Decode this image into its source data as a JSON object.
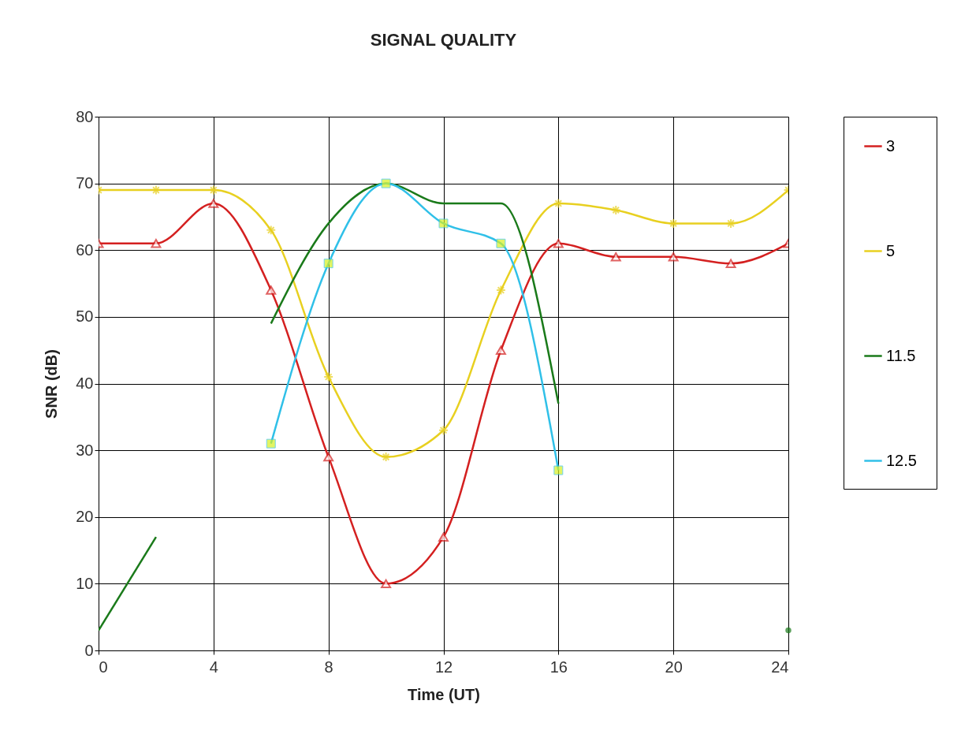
{
  "chart_data": {
    "type": "line",
    "title": "SIGNAL QUALITY",
    "xlabel": "Time (UT)",
    "ylabel": "SNR (dB)",
    "x": [
      0,
      2,
      4,
      6,
      8,
      10,
      12,
      14,
      16,
      18,
      20,
      22,
      24
    ],
    "series": [
      {
        "name": "3",
        "color": "#d42020",
        "marker": "triangle",
        "values": [
          61,
          61,
          67,
          54,
          29,
          10,
          17,
          45,
          61,
          59,
          59,
          58,
          61
        ]
      },
      {
        "name": "5",
        "color": "#e8d020",
        "marker": "cross",
        "values": [
          69,
          69,
          69,
          63,
          41,
          29,
          33,
          54,
          67,
          66,
          64,
          64,
          69
        ]
      },
      {
        "name": "11.5",
        "color": "#1a7a1a",
        "marker": "none",
        "values": [
          3,
          17,
          null,
          49,
          64,
          70,
          67,
          67,
          37,
          null,
          null,
          null,
          3
        ]
      },
      {
        "name": "12.5",
        "color": "#30c0e8",
        "marker": "square",
        "values": [
          null,
          null,
          null,
          31,
          58,
          70,
          64,
          61,
          27,
          null,
          null,
          null,
          null
        ]
      }
    ],
    "xlim": [
      0,
      24
    ],
    "xticks": [
      0,
      4,
      8,
      12,
      16,
      20,
      24
    ],
    "ylim": [
      0,
      80
    ],
    "yticks": [
      0,
      10,
      20,
      30,
      40,
      50,
      60,
      70,
      80
    ],
    "grid": true,
    "legend": "right",
    "line_style": "solid"
  }
}
